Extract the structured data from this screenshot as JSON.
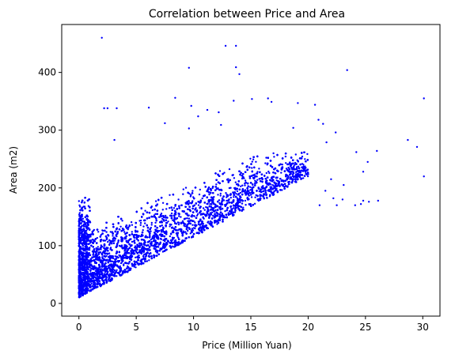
{
  "chart_data": {
    "type": "scatter",
    "title": "Correlation between Price and Area",
    "xlabel": "Price (Million Yuan)",
    "ylabel": "Area (m2)",
    "xlim": [
      -1.5,
      31.5
    ],
    "ylim": [
      -22,
      483
    ],
    "xticks": [
      "0",
      "5",
      "10",
      "15",
      "20",
      "25",
      "30"
    ],
    "yticks": [
      "0",
      "100",
      "200",
      "300",
      "400"
    ],
    "grid": false,
    "legend": "none",
    "marker_color": "#0000ff",
    "dense_region": {
      "x_max": 20,
      "y_min": 8,
      "y_max": 262,
      "approx_points": 16000
    },
    "outliers": [
      {
        "x": 2.0,
        "y": 460
      },
      {
        "x": 12.8,
        "y": 446
      },
      {
        "x": 13.7,
        "y": 446
      },
      {
        "x": 13.7,
        "y": 409
      },
      {
        "x": 9.6,
        "y": 408
      },
      {
        "x": 23.4,
        "y": 404
      },
      {
        "x": 14.0,
        "y": 397
      },
      {
        "x": 8.4,
        "y": 356
      },
      {
        "x": 30.1,
        "y": 355
      },
      {
        "x": 16.5,
        "y": 355
      },
      {
        "x": 15.1,
        "y": 354
      },
      {
        "x": 13.5,
        "y": 351
      },
      {
        "x": 16.8,
        "y": 349
      },
      {
        "x": 19.1,
        "y": 347
      },
      {
        "x": 20.6,
        "y": 344
      },
      {
        "x": 9.8,
        "y": 342
      },
      {
        "x": 6.1,
        "y": 339
      },
      {
        "x": 2.2,
        "y": 338
      },
      {
        "x": 2.5,
        "y": 338
      },
      {
        "x": 3.3,
        "y": 338
      },
      {
        "x": 11.2,
        "y": 335
      },
      {
        "x": 12.2,
        "y": 331
      },
      {
        "x": 10.4,
        "y": 324
      },
      {
        "x": 20.9,
        "y": 318
      },
      {
        "x": 21.3,
        "y": 311
      },
      {
        "x": 7.5,
        "y": 312
      },
      {
        "x": 12.4,
        "y": 309
      },
      {
        "x": 9.6,
        "y": 303
      },
      {
        "x": 18.7,
        "y": 304
      },
      {
        "x": 22.4,
        "y": 296
      },
      {
        "x": 28.7,
        "y": 283
      },
      {
        "x": 29.5,
        "y": 271
      },
      {
        "x": 3.1,
        "y": 283
      },
      {
        "x": 21.6,
        "y": 279
      },
      {
        "x": 24.2,
        "y": 262
      },
      {
        "x": 26.0,
        "y": 264
      },
      {
        "x": 25.2,
        "y": 245
      },
      {
        "x": 24.8,
        "y": 228
      },
      {
        "x": 30.1,
        "y": 220
      },
      {
        "x": 26.1,
        "y": 178
      },
      {
        "x": 25.3,
        "y": 176
      },
      {
        "x": 24.6,
        "y": 172
      },
      {
        "x": 24.1,
        "y": 170
      },
      {
        "x": 24.8,
        "y": 178
      },
      {
        "x": 23.1,
        "y": 205
      },
      {
        "x": 23.0,
        "y": 180
      },
      {
        "x": 22.5,
        "y": 170
      },
      {
        "x": 22.2,
        "y": 182
      },
      {
        "x": 21.5,
        "y": 195
      },
      {
        "x": 21.0,
        "y": 170
      },
      {
        "x": 22.0,
        "y": 215
      }
    ]
  }
}
